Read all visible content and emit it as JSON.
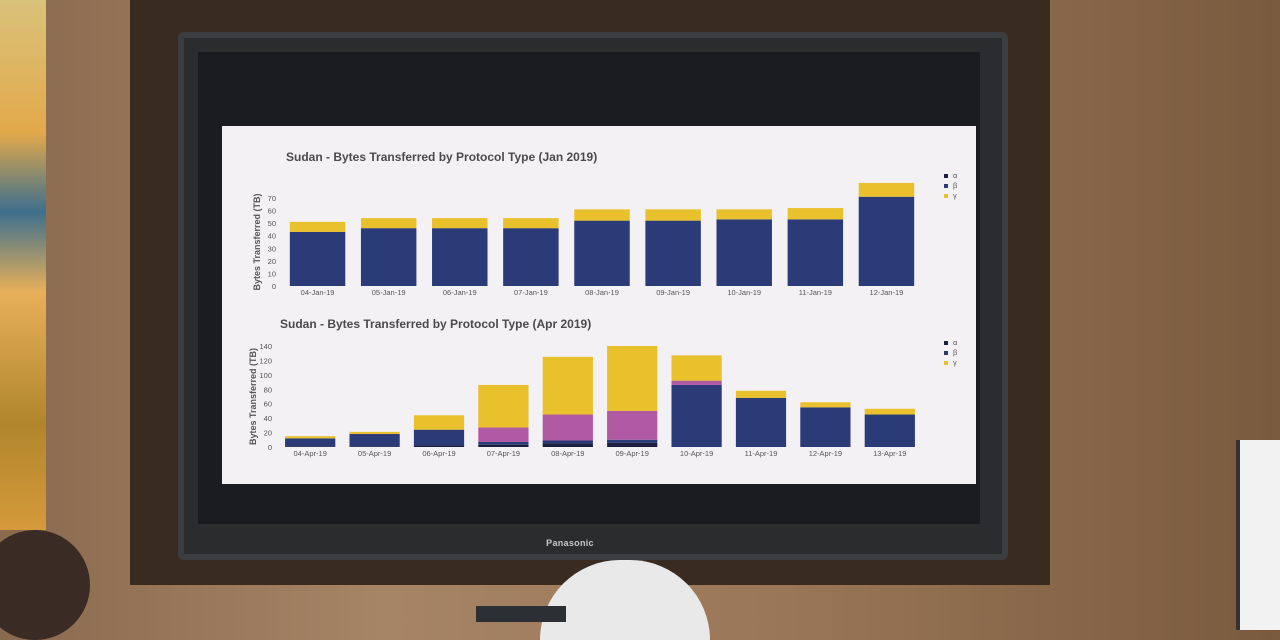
{
  "tv": {
    "brand": "Panasonic"
  },
  "legend": [
    "α",
    "β",
    "γ"
  ],
  "colors": {
    "alpha": "#1c1f3f",
    "beta": "#2b3b78",
    "gamma": "#e9c12c",
    "magenta": "#b15aa4"
  },
  "chart_data": [
    {
      "type": "bar",
      "title": "Sudan - Bytes Transferred by Protocol Type (Jan 2019)",
      "xlabel": "",
      "ylabel": "Bytes Transferred (TB)",
      "ylim": [
        0,
        70
      ],
      "yticks": [
        0,
        10,
        20,
        30,
        40,
        50,
        60,
        70
      ],
      "categories": [
        "04-Jan-19",
        "05-Jan-19",
        "06-Jan-19",
        "07-Jan-19",
        "08-Jan-19",
        "09-Jan-19",
        "10-Jan-19",
        "11-Jan-19",
        "12-Jan-19"
      ],
      "series": [
        {
          "name": "α",
          "values": [
            0,
            0,
            0,
            0,
            0,
            0,
            0,
            0,
            0
          ]
        },
        {
          "name": "β",
          "values": [
            43,
            46,
            46,
            46,
            52,
            52,
            53,
            53,
            71
          ]
        },
        {
          "name": "γ",
          "values": [
            8,
            8,
            8,
            8,
            9,
            9,
            8,
            9,
            11
          ]
        }
      ],
      "legend_position": "top-right"
    },
    {
      "type": "bar",
      "title": "Sudan - Bytes Transferred by Protocol Type (Apr 2019)",
      "xlabel": "",
      "ylabel": "Bytes Transferred (TB)",
      "ylim": [
        0,
        140
      ],
      "yticks": [
        0,
        20,
        40,
        60,
        80,
        100,
        120,
        140
      ],
      "categories": [
        "04-Apr-19",
        "05-Apr-19",
        "06-Apr-19",
        "07-Apr-19",
        "08-Apr-19",
        "09-Apr-19",
        "10-Apr-19",
        "11-Apr-19",
        "12-Apr-19",
        "13-Apr-19"
      ],
      "series": [
        {
          "name": "α",
          "values": [
            1,
            1,
            2,
            3,
            5,
            6,
            0,
            0,
            0,
            0
          ]
        },
        {
          "name": "β",
          "values": [
            11,
            17,
            22,
            24,
            40,
            44,
            92,
            68,
            55,
            45
          ]
        },
        {
          "name": "γ",
          "values": [
            3,
            3,
            20,
            59,
            80,
            90,
            35,
            10,
            7,
            8
          ]
        }
      ],
      "legend_position": "top-right"
    }
  ]
}
